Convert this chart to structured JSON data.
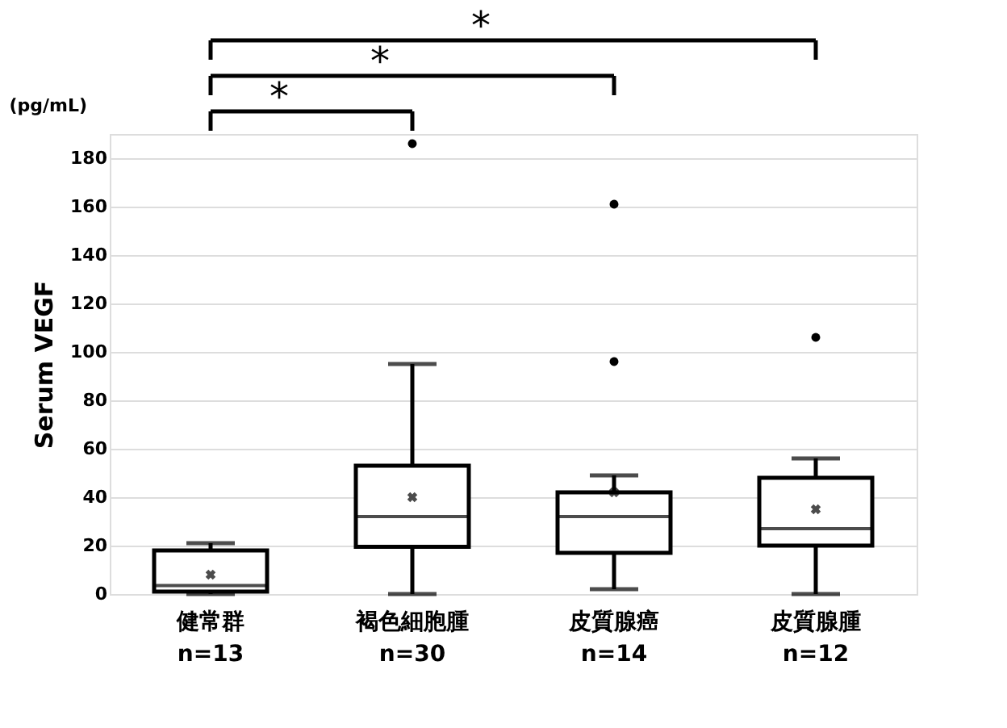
{
  "chart_data": {
    "type": "box",
    "ylabel": "Serum VEGF",
    "categories": [
      "健常群\nn=13",
      "褐色細胞腫\nn=30",
      "皮質腺癌\nn=14",
      "皮質腺腫\nn=12"
    ],
    "boxes": [
      {
        "low": 0,
        "q1": 1,
        "median": 3.5,
        "q3": 18,
        "high": 21,
        "mean": 8
      },
      {
        "low": 0,
        "q1": 19.5,
        "median": 32,
        "q3": 53,
        "high": 95,
        "mean": 40,
        "outliers": [
          186
        ]
      },
      {
        "low": 2,
        "q1": 17,
        "median": 32,
        "q3": 42,
        "high": 49,
        "mean": 42,
        "outliers": [
          161,
          96
        ]
      },
      {
        "low": 0,
        "q1": 20,
        "median": 27,
        "q3": 48,
        "high": 56,
        "mean": 35,
        "outliers": [
          106
        ]
      }
    ],
    "color": "#000000",
    "ylim": [
      0,
      190
    ],
    "yticks": [
      0,
      20,
      40,
      60,
      80,
      100,
      120,
      140,
      160,
      180
    ],
    "grid": "y",
    "marker": "cross",
    "annotations": [
      "(pg/mL)",
      "*",
      "*",
      "*"
    ]
  }
}
